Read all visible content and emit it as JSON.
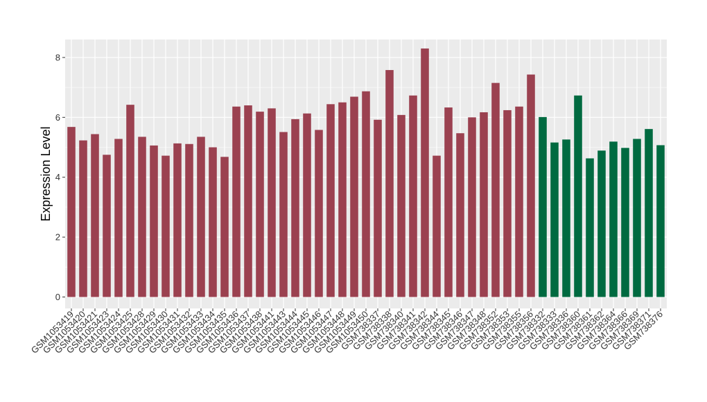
{
  "chart_data": {
    "type": "bar",
    "title": "",
    "xlabel": "",
    "ylabel": "Expression Level",
    "ylim": [
      0,
      8.6
    ],
    "yticks": [
      0,
      2,
      4,
      6,
      8
    ],
    "grid": true,
    "legend": "none",
    "colors": {
      "group1": "#9b4150",
      "group2": "#006a40",
      "panel": "#ebebeb",
      "grid": "#ffffff"
    },
    "categories": [
      "GSM1053419",
      "GSM1053420",
      "GSM1053421",
      "GSM1053423",
      "GSM1053424",
      "GSM1053425",
      "GSM1053428",
      "GSM1053429",
      "GSM1053430",
      "GSM1053431",
      "GSM1053432",
      "GSM1053433",
      "GSM1053434",
      "GSM1053435",
      "GSM1053436",
      "GSM1053437",
      "GSM1053438",
      "GSM1053441",
      "GSM1053443",
      "GSM1053444",
      "GSM1053445",
      "GSM1053446",
      "GSM1053447",
      "GSM1053448",
      "GSM1053449",
      "GSM1053450",
      "GSM738337",
      "GSM738338",
      "GSM738340",
      "GSM738341",
      "GSM738342",
      "GSM738344",
      "GSM738345",
      "GSM738346",
      "GSM738347",
      "GSM738348",
      "GSM738352",
      "GSM738353",
      "GSM738355",
      "GSM738356",
      "GSM738332",
      "GSM738333",
      "GSM738336",
      "GSM738360",
      "GSM738361",
      "GSM738362",
      "GSM738364",
      "GSM738366",
      "GSM738369",
      "GSM738371",
      "GSM738376"
    ],
    "values": [
      5.68,
      5.23,
      5.44,
      4.75,
      5.28,
      6.42,
      5.35,
      5.06,
      4.72,
      5.13,
      5.11,
      5.35,
      5.0,
      4.68,
      6.36,
      6.4,
      6.19,
      6.3,
      5.51,
      5.94,
      6.13,
      5.58,
      6.44,
      6.5,
      6.69,
      6.87,
      5.92,
      7.58,
      6.08,
      6.73,
      8.3,
      4.72,
      6.33,
      5.47,
      6.0,
      6.17,
      7.15,
      6.24,
      6.36,
      7.43,
      6.01,
      5.16,
      5.26,
      6.73,
      4.63,
      4.89,
      5.19,
      4.98,
      5.28,
      5.61,
      5.07
    ],
    "groups": [
      1,
      1,
      1,
      1,
      1,
      1,
      1,
      1,
      1,
      1,
      1,
      1,
      1,
      1,
      1,
      1,
      1,
      1,
      1,
      1,
      1,
      1,
      1,
      1,
      1,
      1,
      1,
      1,
      1,
      1,
      1,
      1,
      1,
      1,
      1,
      1,
      1,
      1,
      1,
      1,
      2,
      2,
      2,
      2,
      2,
      2,
      2,
      2,
      2,
      2,
      2
    ]
  }
}
